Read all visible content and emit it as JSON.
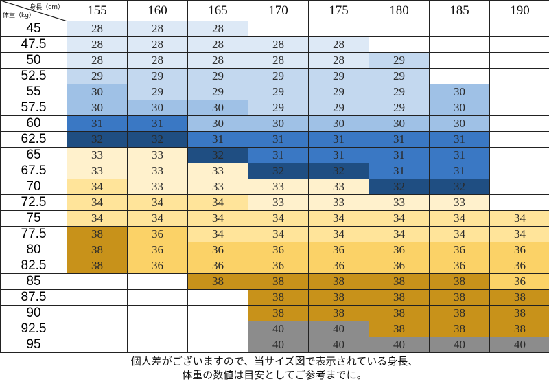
{
  "corner": {
    "height_label": "身長（cm）",
    "weight_label": "体重（kg）"
  },
  "heights": [
    "155",
    "160",
    "165",
    "170",
    "175",
    "180",
    "185",
    "190"
  ],
  "rows": [
    {
      "weight": "45",
      "sizes": [
        "28",
        "28",
        "28",
        "",
        "",
        "",
        "",
        ""
      ]
    },
    {
      "weight": "47.5",
      "sizes": [
        "28",
        "28",
        "28",
        "28",
        "28",
        "",
        "",
        ""
      ]
    },
    {
      "weight": "50",
      "sizes": [
        "28",
        "28",
        "28",
        "28",
        "28",
        "29",
        "",
        ""
      ]
    },
    {
      "weight": "52.5",
      "sizes": [
        "29",
        "29",
        "29",
        "29",
        "29",
        "29",
        "",
        ""
      ]
    },
    {
      "weight": "55",
      "sizes": [
        "30",
        "29",
        "29",
        "29",
        "29",
        "29",
        "30",
        ""
      ]
    },
    {
      "weight": "57.5",
      "sizes": [
        "30",
        "30",
        "30",
        "29",
        "29",
        "29",
        "30",
        ""
      ]
    },
    {
      "weight": "60",
      "sizes": [
        "31",
        "31",
        "30",
        "30",
        "30",
        "30",
        "30",
        ""
      ]
    },
    {
      "weight": "62.5",
      "sizes": [
        "32",
        "32",
        "31",
        "31",
        "31",
        "31",
        "31",
        ""
      ]
    },
    {
      "weight": "65",
      "sizes": [
        "33",
        "33",
        "32",
        "31",
        "31",
        "31",
        "31",
        ""
      ]
    },
    {
      "weight": "67.5",
      "sizes": [
        "33",
        "33",
        "33",
        "32",
        "32",
        "31",
        "31",
        ""
      ]
    },
    {
      "weight": "70",
      "sizes": [
        "34",
        "33",
        "33",
        "33",
        "33",
        "32",
        "32",
        ""
      ]
    },
    {
      "weight": "72.5",
      "sizes": [
        "34",
        "34",
        "34",
        "33",
        "33",
        "33",
        "33",
        ""
      ]
    },
    {
      "weight": "75",
      "sizes": [
        "34",
        "34",
        "34",
        "34",
        "34",
        "34",
        "34",
        "34"
      ]
    },
    {
      "weight": "77.5",
      "sizes": [
        "38",
        "36",
        "34",
        "34",
        "34",
        "34",
        "34",
        "34"
      ]
    },
    {
      "weight": "80",
      "sizes": [
        "38",
        "36",
        "36",
        "36",
        "36",
        "36",
        "36",
        "36"
      ]
    },
    {
      "weight": "82.5",
      "sizes": [
        "38",
        "36",
        "36",
        "36",
        "36",
        "36",
        "36",
        "36"
      ]
    },
    {
      "weight": "85",
      "sizes": [
        "",
        "",
        "38",
        "38",
        "38",
        "38",
        "38",
        "36"
      ]
    },
    {
      "weight": "87.5",
      "sizes": [
        "",
        "",
        "",
        "38",
        "38",
        "38",
        "38",
        "38"
      ]
    },
    {
      "weight": "90",
      "sizes": [
        "",
        "",
        "",
        "38",
        "38",
        "38",
        "38",
        "38"
      ]
    },
    {
      "weight": "92.5",
      "sizes": [
        "",
        "",
        "",
        "40",
        "40",
        "38",
        "38",
        "38"
      ]
    },
    {
      "weight": "95",
      "sizes": [
        "",
        "",
        "",
        "40",
        "40",
        "40",
        "40",
        "40"
      ]
    }
  ],
  "size_colors": {
    "28": "#dde9f6",
    "29": "#c3d8ef",
    "30": "#9fc1e6",
    "31": "#3a78c4",
    "32": "#1f4e82",
    "33": "#fff1cc",
    "34": "#ffe49a",
    "36": "#fbd267",
    "38": "#c8921a",
    "40": "#8c8c8c"
  },
  "footer": {
    "line1": "個人差がございますので、当サイズ図で表示されている身長、",
    "line2": "体重の数値は目安としてご参考までに。"
  }
}
